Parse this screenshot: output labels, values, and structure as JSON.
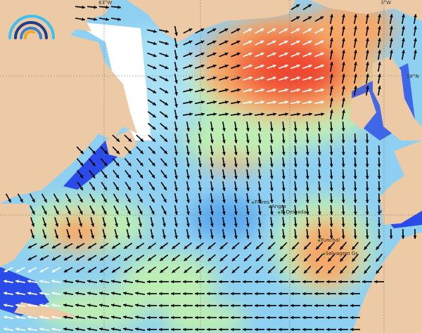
{
  "map": {
    "graticule_labels": {
      "lon_63w": "63°W",
      "lon_3w": "3°W",
      "lat_58n": "58°N"
    },
    "places": [
      {
        "name": "Flores"
      },
      {
        "name": "Angra"
      },
      {
        "name": "P. Delgada"
      },
      {
        "name": "Funchal"
      },
      {
        "name": "Selvagem Gr."
      }
    ],
    "colors": {
      "land": "#eccaa6",
      "ice": "#ffffff",
      "ocean_low": "#2a4be8",
      "ocean_mid": "#8ed0f2",
      "ocean_high_green": "#bdeeb4",
      "ocean_orange": "#f5a868",
      "ocean_red": "#f04a30",
      "arrow": "#000000"
    },
    "logo": "wave-arcs-logo"
  }
}
